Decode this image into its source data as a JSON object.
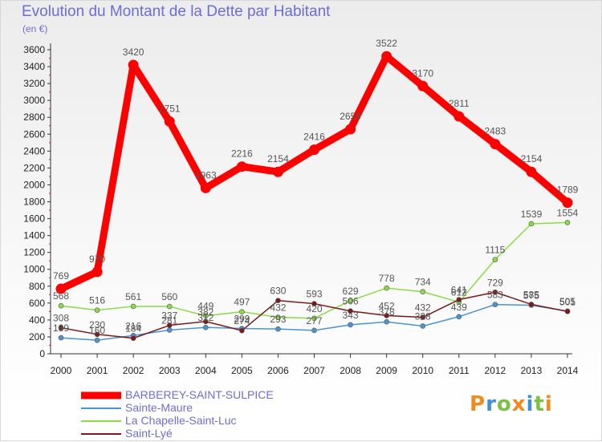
{
  "title": "Evolution du Montant de la Dette par Habitant",
  "unit": "(en €)",
  "logo": "Proxiti",
  "chart_data": {
    "type": "line",
    "x": [
      "2000",
      "2001",
      "2002",
      "2003",
      "2004",
      "2005",
      "2006",
      "2007",
      "2008",
      "2009",
      "2010",
      "2011",
      "2012",
      "2013",
      "2014"
    ],
    "ylim": [
      0,
      3600
    ],
    "yticks": [
      0,
      200,
      400,
      600,
      800,
      1000,
      1200,
      1400,
      1600,
      1800,
      2000,
      2200,
      2400,
      2600,
      2800,
      3000,
      3200,
      3400,
      3600
    ],
    "grid": false,
    "legend_position": "bottom-left",
    "series": [
      {
        "name": "BARBEREY-SAINT-SULPICE",
        "color": "#ff0000",
        "values": [
          769,
          970,
          3420,
          2751,
          1963,
          2216,
          2154,
          2416,
          2659,
          3522,
          3170,
          2811,
          2483,
          2154,
          1789
        ],
        "labels": [
          "769",
          "970",
          "3420",
          "2751",
          "1963",
          "2216",
          "2154",
          "2416",
          "2659",
          "3522",
          "3170",
          "2811",
          "2483",
          "2154",
          "1789"
        ]
      },
      {
        "name": "Sainte-Maure",
        "color": "#4a94d6",
        "values": [
          189,
          160,
          216,
          281,
          312,
          299,
          293,
          277,
          343,
          378,
          328,
          439,
          583,
          575,
          505
        ],
        "labels": [
          "189",
          "160",
          "216",
          "281",
          "312",
          "299",
          "293",
          "277",
          "343",
          "378",
          "328",
          "439",
          "583",
          "575",
          "505"
        ]
      },
      {
        "name": "La Chapelle-Saint-Luc",
        "color": "#88dd44",
        "values": [
          568,
          516,
          561,
          560,
          449,
          497,
          432,
          420,
          629,
          778,
          734,
          612,
          1115,
          1539,
          1554
        ],
        "labels": [
          "568",
          "516",
          "561",
          "560",
          "449",
          "497",
          "432",
          "420",
          "629",
          "778",
          "734",
          "612",
          "1115",
          "1539",
          "1554"
        ]
      },
      {
        "name": "Saint-Lyé",
        "color": "#7a1a1a",
        "values": [
          308,
          230,
          184,
          337,
          382,
          274,
          630,
          593,
          506,
          452,
          432,
          641,
          729,
          585,
          501
        ],
        "labels": [
          "308",
          "230",
          "184",
          "337",
          "382",
          "274",
          "630",
          "593",
          "506",
          "452",
          "432",
          "641",
          "729",
          "585",
          "501"
        ]
      }
    ]
  }
}
